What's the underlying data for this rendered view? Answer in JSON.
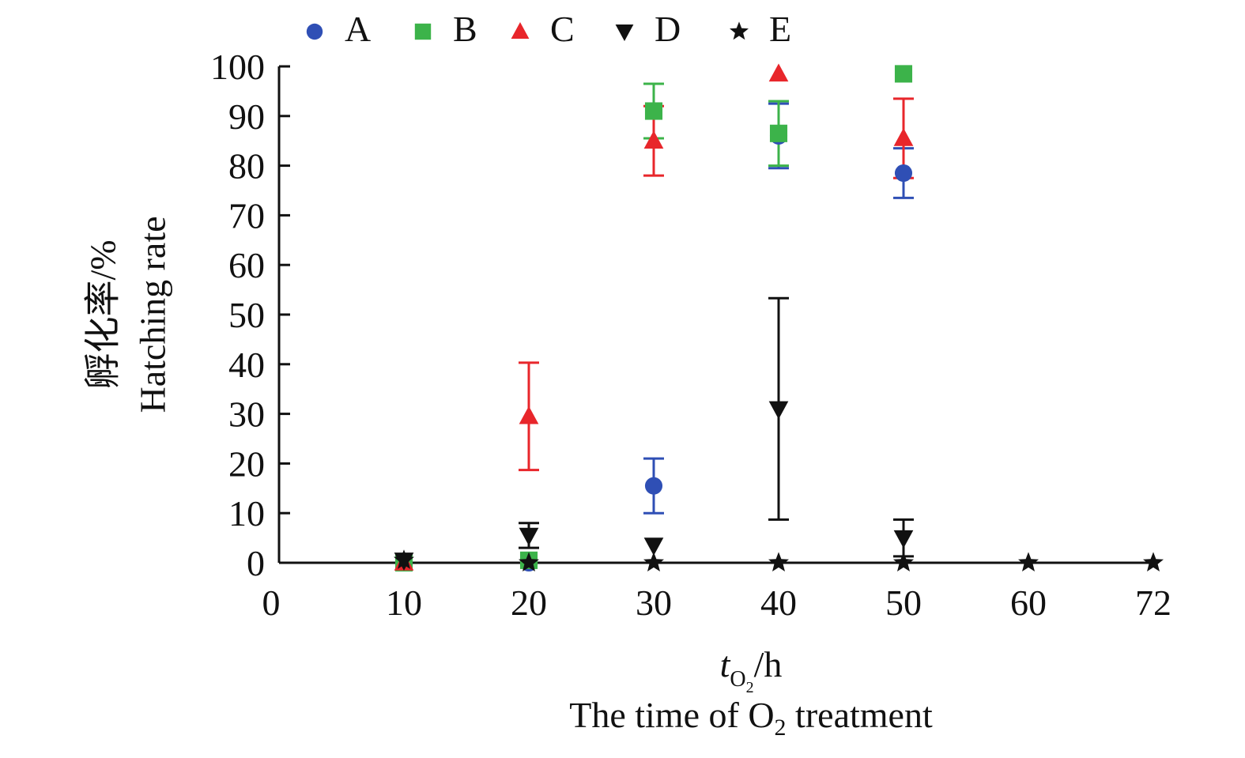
{
  "chart_data": {
    "type": "scatter",
    "title": "",
    "xlabel_symbol": "t",
    "xlabel_subscript": "O",
    "xlabel_subsubscript": "2",
    "xlabel_unit": "/h",
    "xlabel_en_prefix": "The time of O",
    "xlabel_en_sub": "2",
    "xlabel_en_suffix": " treatment",
    "ylabel_cn": "孵化率/%",
    "ylabel_en": "Hatching rate",
    "x_tick_labels": [
      "0",
      "10",
      "20",
      "30",
      "40",
      "50",
      "60",
      "72"
    ],
    "y_ticks": [
      0,
      10,
      20,
      30,
      40,
      50,
      60,
      70,
      80,
      90,
      100
    ],
    "ylim": [
      0,
      100
    ],
    "legend_position": "top",
    "series": [
      {
        "name": "A",
        "marker": "circle",
        "color": "#2f4fb5",
        "points": [
          {
            "x": "10",
            "y": 0,
            "err": 0
          },
          {
            "x": "20",
            "y": 0,
            "err": 0
          },
          {
            "x": "30",
            "y": 15.5,
            "err": 5.5
          },
          {
            "x": "40",
            "y": 86,
            "err": 6.5
          },
          {
            "x": "50",
            "y": 78.5,
            "err": 5
          }
        ]
      },
      {
        "name": "B",
        "marker": "square",
        "color": "#3cb34a",
        "points": [
          {
            "x": "10",
            "y": 0,
            "err": 0
          },
          {
            "x": "20",
            "y": 0.5,
            "err": 0
          },
          {
            "x": "30",
            "y": 91,
            "err": 5.5
          },
          {
            "x": "40",
            "y": 86.5,
            "err": 6.5
          },
          {
            "x": "50",
            "y": 98.5,
            "err": 0
          }
        ]
      },
      {
        "name": "C",
        "marker": "triangle-up",
        "color": "#e8262b",
        "points": [
          {
            "x": "10",
            "y": 0,
            "err": 0
          },
          {
            "x": "20",
            "y": 29.5,
            "err": 10.8
          },
          {
            "x": "30",
            "y": 85,
            "err": 7
          },
          {
            "x": "40",
            "y": 98.5,
            "err": 0
          },
          {
            "x": "50",
            "y": 85.5,
            "err": 8
          }
        ]
      },
      {
        "name": "D",
        "marker": "triangle-down",
        "color": "#111111",
        "points": [
          {
            "x": "10",
            "y": 0.5,
            "err": 0
          },
          {
            "x": "20",
            "y": 5.5,
            "err": 2.5
          },
          {
            "x": "30",
            "y": 3.5,
            "err": 0
          },
          {
            "x": "40",
            "y": 31,
            "err": 22.3
          },
          {
            "x": "50",
            "y": 5,
            "err": 3.7
          }
        ]
      },
      {
        "name": "E",
        "marker": "star",
        "color": "#111111",
        "points": [
          {
            "x": "10",
            "y": 0.5,
            "err": 0
          },
          {
            "x": "20",
            "y": 0,
            "err": 0
          },
          {
            "x": "30",
            "y": 0,
            "err": 0
          },
          {
            "x": "40",
            "y": 0,
            "err": 0
          },
          {
            "x": "50",
            "y": 0,
            "err": 0
          },
          {
            "x": "60",
            "y": 0,
            "err": 0
          },
          {
            "x": "72",
            "y": 0,
            "err": 0
          }
        ]
      }
    ]
  }
}
